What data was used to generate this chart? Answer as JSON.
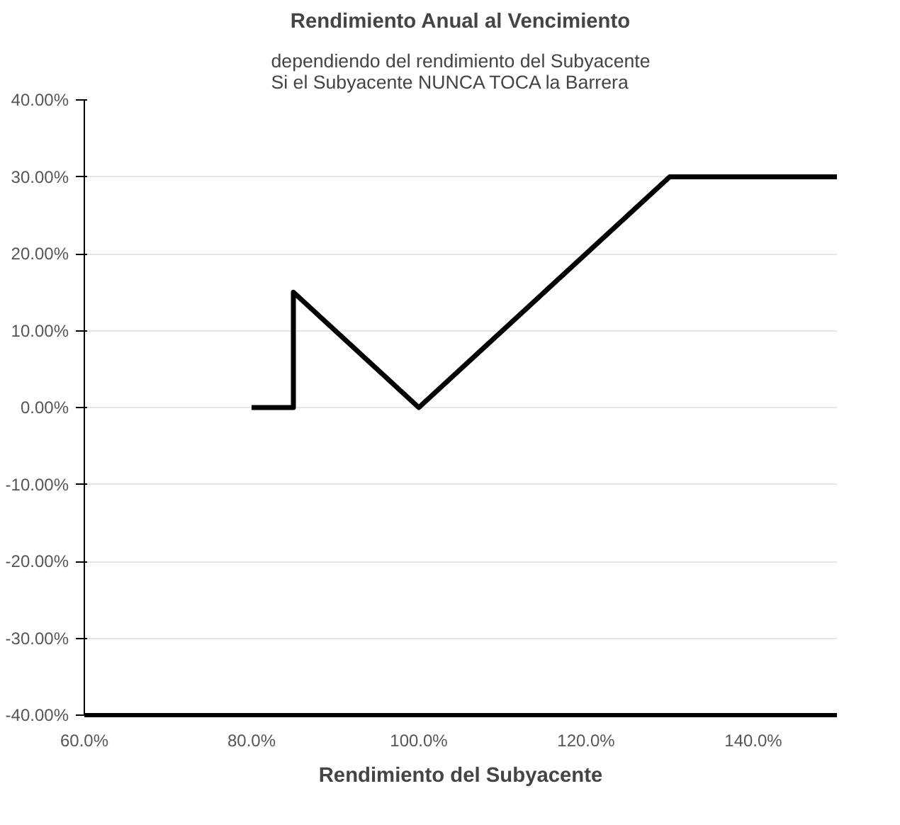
{
  "chart_data": {
    "type": "line",
    "title": "Rendimiento Anual al Vencimiento",
    "subtitle": "dependiendo del rendimiento del Subyacente\nSi el Subyacente NUNCA TOCA la Barrera",
    "xlabel": "Rendimiento del Subyacente",
    "x": [
      80,
      85,
      85,
      100,
      130,
      150
    ],
    "series": [
      {
        "color": "#000000",
        "values": [
          0,
          0,
          15,
          0,
          30,
          30
        ]
      }
    ],
    "xlim": [
      60,
      150
    ],
    "xticks": [
      {
        "value": 60,
        "label": "60.0%"
      },
      {
        "value": 80,
        "label": "80.0%"
      },
      {
        "value": 100,
        "label": "100.0%"
      },
      {
        "value": 120,
        "label": "120.0%"
      },
      {
        "value": 140,
        "label": "140.0%"
      }
    ],
    "ylim": [
      -40,
      40
    ],
    "yticks": [
      {
        "value": -40,
        "label": "-40.00%"
      },
      {
        "value": -30,
        "label": "-30.00%"
      },
      {
        "value": -20,
        "label": "-20.00%"
      },
      {
        "value": -10,
        "label": "-10.00%"
      },
      {
        "value": 0,
        "label": "0.00%"
      },
      {
        "value": 10,
        "label": "10.00%"
      },
      {
        "value": 20,
        "label": "20.00%"
      },
      {
        "value": 30,
        "label": "30.00%"
      },
      {
        "value": 40,
        "label": "40.00%"
      }
    ],
    "grid": "y",
    "line_style": "solid"
  }
}
